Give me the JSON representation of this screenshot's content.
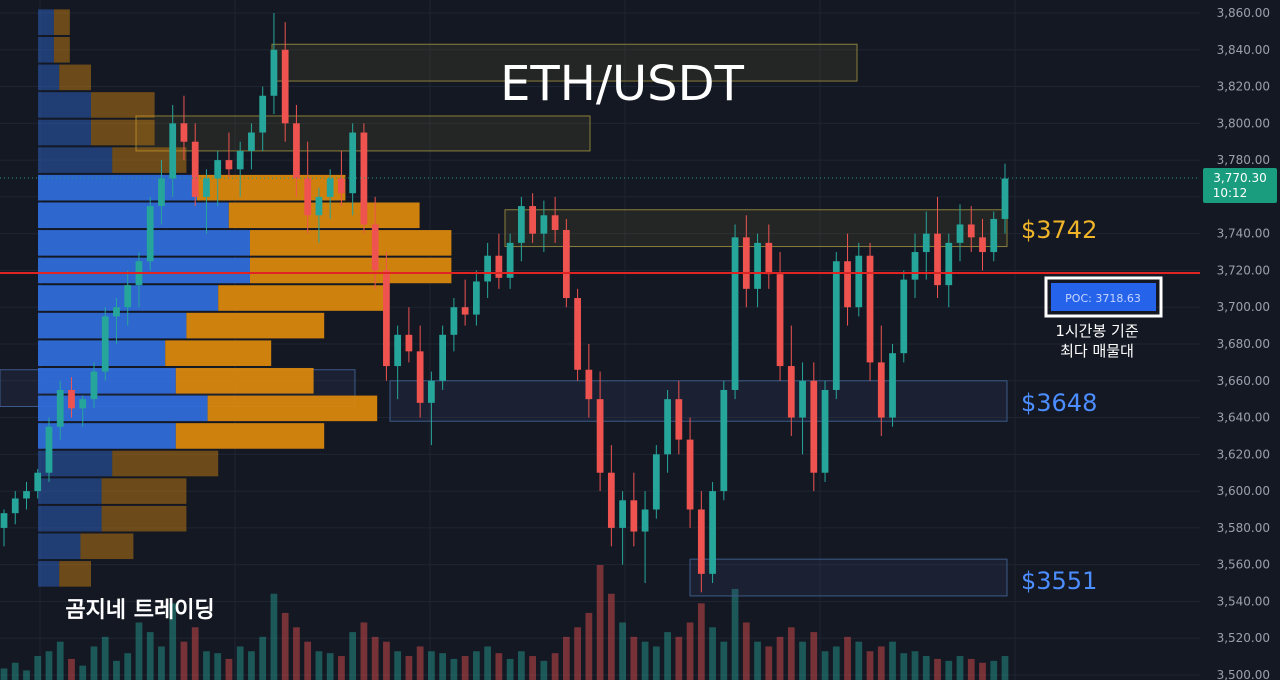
{
  "chart_data": {
    "type": "candlestick",
    "title": "ETH/USDT",
    "watermark": "곰지네 트레이딩",
    "y_axis": {
      "ticks": [
        "3,860.00",
        "3,840.00",
        "3,820.00",
        "3,800.00",
        "3,780.00",
        "3,760.00",
        "3,740.00",
        "3,720.00",
        "3,700.00",
        "3,680.00",
        "3,660.00",
        "3,640.00",
        "3,620.00",
        "3,600.00",
        "3,580.00",
        "3,560.00",
        "3,540.00",
        "3,520.00",
        "3,500.00"
      ],
      "ylim": [
        3500,
        3860
      ]
    },
    "current_price": {
      "label": "3,770.30",
      "timer": "10:12",
      "value": 3770.3
    },
    "poc": {
      "label": "POC: 3718.63",
      "value": 3718.63,
      "note_line1": "1시간봉 기준",
      "note_line2": "최다 매물대"
    },
    "levels": [
      {
        "label": "$3742",
        "value": 3742,
        "color": "#f0b429"
      },
      {
        "label": "$3648",
        "value": 3648,
        "color": "#4c8dff"
      },
      {
        "label": "$3551",
        "value": 3551,
        "color": "#4c8dff"
      }
    ],
    "zones": [
      {
        "top": 3843,
        "bottom": 3823,
        "kind": "resistance"
      },
      {
        "top": 3804,
        "bottom": 3785,
        "kind": "resistance"
      },
      {
        "top": 3753,
        "bottom": 3733,
        "kind": "resistance"
      },
      {
        "top": 3660,
        "bottom": 3638,
        "kind": "support"
      },
      {
        "top": 3563,
        "bottom": 3543,
        "kind": "support"
      },
      {
        "top": 3666,
        "bottom": 3646,
        "kind": "support"
      }
    ],
    "volume_profile": [
      {
        "price": 3855,
        "buy": 3,
        "sell": 3
      },
      {
        "price": 3840,
        "buy": 3,
        "sell": 3
      },
      {
        "price": 3825,
        "buy": 4,
        "sell": 6
      },
      {
        "price": 3810,
        "buy": 10,
        "sell": 12
      },
      {
        "price": 3795,
        "buy": 10,
        "sell": 12
      },
      {
        "price": 3780,
        "buy": 14,
        "sell": 14
      },
      {
        "price": 3765,
        "buy": 30,
        "sell": 28
      },
      {
        "price": 3750,
        "buy": 36,
        "sell": 36
      },
      {
        "price": 3735,
        "buy": 40,
        "sell": 38
      },
      {
        "price": 3720,
        "buy": 40,
        "sell": 38
      },
      {
        "price": 3705,
        "buy": 34,
        "sell": 32
      },
      {
        "price": 3690,
        "buy": 28,
        "sell": 26
      },
      {
        "price": 3675,
        "buy": 24,
        "sell": 20
      },
      {
        "price": 3660,
        "buy": 26,
        "sell": 26
      },
      {
        "price": 3645,
        "buy": 32,
        "sell": 32
      },
      {
        "price": 3630,
        "buy": 26,
        "sell": 28
      },
      {
        "price": 3615,
        "buy": 14,
        "sell": 20
      },
      {
        "price": 3600,
        "buy": 12,
        "sell": 16
      },
      {
        "price": 3585,
        "buy": 12,
        "sell": 16
      },
      {
        "price": 3570,
        "buy": 8,
        "sell": 10
      },
      {
        "price": 3555,
        "buy": 4,
        "sell": 6
      }
    ],
    "candles": [
      [
        3580,
        3590,
        3570,
        3588
      ],
      [
        3588,
        3600,
        3582,
        3596
      ],
      [
        3596,
        3605,
        3590,
        3600
      ],
      [
        3600,
        3612,
        3596,
        3610
      ],
      [
        3610,
        3640,
        3605,
        3635
      ],
      [
        3635,
        3660,
        3628,
        3655
      ],
      [
        3655,
        3662,
        3640,
        3645
      ],
      [
        3645,
        3652,
        3635,
        3650
      ],
      [
        3650,
        3670,
        3645,
        3665
      ],
      [
        3665,
        3700,
        3660,
        3695
      ],
      [
        3695,
        3705,
        3680,
        3700
      ],
      [
        3700,
        3720,
        3690,
        3712
      ],
      [
        3712,
        3730,
        3700,
        3725
      ],
      [
        3725,
        3760,
        3720,
        3755
      ],
      [
        3755,
        3780,
        3745,
        3770
      ],
      [
        3770,
        3810,
        3760,
        3800
      ],
      [
        3800,
        3815,
        3780,
        3790
      ],
      [
        3790,
        3800,
        3755,
        3760
      ],
      [
        3760,
        3775,
        3740,
        3770
      ],
      [
        3770,
        3785,
        3755,
        3780
      ],
      [
        3780,
        3795,
        3770,
        3775
      ],
      [
        3775,
        3790,
        3760,
        3785
      ],
      [
        3785,
        3800,
        3775,
        3795
      ],
      [
        3795,
        3820,
        3785,
        3815
      ],
      [
        3815,
        3860,
        3805,
        3840
      ],
      [
        3840,
        3855,
        3790,
        3800
      ],
      [
        3800,
        3810,
        3760,
        3770
      ],
      [
        3770,
        3790,
        3740,
        3750
      ],
      [
        3750,
        3765,
        3735,
        3760
      ],
      [
        3760,
        3775,
        3748,
        3770
      ],
      [
        3770,
        3785,
        3755,
        3762
      ],
      [
        3762,
        3800,
        3750,
        3795
      ],
      [
        3795,
        3800,
        3740,
        3745
      ],
      [
        3745,
        3760,
        3710,
        3720
      ],
      [
        3720,
        3730,
        3660,
        3668
      ],
      [
        3668,
        3690,
        3650,
        3685
      ],
      [
        3685,
        3700,
        3670,
        3676
      ],
      [
        3676,
        3690,
        3640,
        3648
      ],
      [
        3648,
        3665,
        3625,
        3660
      ],
      [
        3660,
        3690,
        3655,
        3685
      ],
      [
        3685,
        3705,
        3676,
        3700
      ],
      [
        3700,
        3715,
        3690,
        3696
      ],
      [
        3696,
        3720,
        3690,
        3714
      ],
      [
        3714,
        3735,
        3705,
        3728
      ],
      [
        3728,
        3740,
        3710,
        3716
      ],
      [
        3716,
        3740,
        3710,
        3735
      ],
      [
        3735,
        3760,
        3725,
        3755
      ],
      [
        3755,
        3762,
        3735,
        3740
      ],
      [
        3740,
        3758,
        3730,
        3750
      ],
      [
        3750,
        3760,
        3735,
        3742
      ],
      [
        3742,
        3748,
        3700,
        3705
      ],
      [
        3705,
        3710,
        3660,
        3666
      ],
      [
        3666,
        3680,
        3640,
        3650
      ],
      [
        3650,
        3665,
        3600,
        3610
      ],
      [
        3610,
        3625,
        3570,
        3580
      ],
      [
        3580,
        3600,
        3560,
        3595
      ],
      [
        3595,
        3610,
        3570,
        3578
      ],
      [
        3578,
        3600,
        3550,
        3590
      ],
      [
        3590,
        3625,
        3585,
        3620
      ],
      [
        3620,
        3655,
        3610,
        3650
      ],
      [
        3650,
        3660,
        3620,
        3628
      ],
      [
        3628,
        3640,
        3580,
        3590
      ],
      [
        3590,
        3600,
        3545,
        3555
      ],
      [
        3555,
        3605,
        3550,
        3600
      ],
      [
        3600,
        3660,
        3595,
        3655
      ],
      [
        3655,
        3745,
        3650,
        3738
      ],
      [
        3738,
        3750,
        3700,
        3710
      ],
      [
        3710,
        3740,
        3700,
        3735
      ],
      [
        3735,
        3745,
        3710,
        3718
      ],
      [
        3718,
        3730,
        3660,
        3668
      ],
      [
        3668,
        3690,
        3630,
        3640
      ],
      [
        3640,
        3670,
        3620,
        3660
      ],
      [
        3660,
        3670,
        3600,
        3610
      ],
      [
        3610,
        3660,
        3605,
        3655
      ],
      [
        3655,
        3730,
        3650,
        3725
      ],
      [
        3725,
        3740,
        3690,
        3700
      ],
      [
        3700,
        3735,
        3695,
        3728
      ],
      [
        3728,
        3735,
        3660,
        3670
      ],
      [
        3670,
        3690,
        3630,
        3640
      ],
      [
        3640,
        3680,
        3635,
        3675
      ],
      [
        3675,
        3720,
        3670,
        3715
      ],
      [
        3715,
        3740,
        3705,
        3730
      ],
      [
        3730,
        3752,
        3715,
        3740
      ],
      [
        3740,
        3760,
        3705,
        3712
      ],
      [
        3712,
        3740,
        3700,
        3735
      ],
      [
        3735,
        3756,
        3725,
        3745
      ],
      [
        3745,
        3755,
        3730,
        3738
      ],
      [
        3738,
        3748,
        3720,
        3730
      ],
      [
        3730,
        3752,
        3725,
        3748
      ],
      [
        3748,
        3778,
        3740,
        3770
      ]
    ],
    "volume": [
      12,
      18,
      10,
      25,
      30,
      40,
      22,
      15,
      35,
      45,
      20,
      28,
      60,
      50,
      35,
      80,
      40,
      55,
      30,
      28,
      22,
      35,
      30,
      45,
      90,
      70,
      55,
      40,
      30,
      28,
      25,
      50,
      60,
      45,
      40,
      30,
      25,
      35,
      30,
      28,
      22,
      25,
      30,
      35,
      28,
      22,
      30,
      25,
      20,
      28,
      45,
      55,
      70,
      120,
      90,
      60,
      45,
      40,
      35,
      50,
      45,
      60,
      80,
      55,
      40,
      95,
      60,
      40,
      35,
      45,
      55,
      40,
      50,
      30,
      35,
      45,
      40,
      30,
      35,
      40,
      28,
      30,
      25,
      22,
      20,
      25,
      22,
      18,
      20,
      25
    ]
  },
  "colors": {
    "background": "#141823",
    "grid": "#1f2432",
    "up": "#26a69a",
    "down": "#ef5350",
    "poc_line": "#e02424",
    "vp_buy": "#2f6bd8",
    "vp_sell": "#d9870e",
    "zone_fill": "rgba(150,140,60,0.12)",
    "zone_stroke": "#8a7f3a",
    "support_fill": "rgba(60,80,120,0.18)",
    "support_stroke": "#3c5a8a",
    "current_label_bg": "#1a9c7e"
  }
}
